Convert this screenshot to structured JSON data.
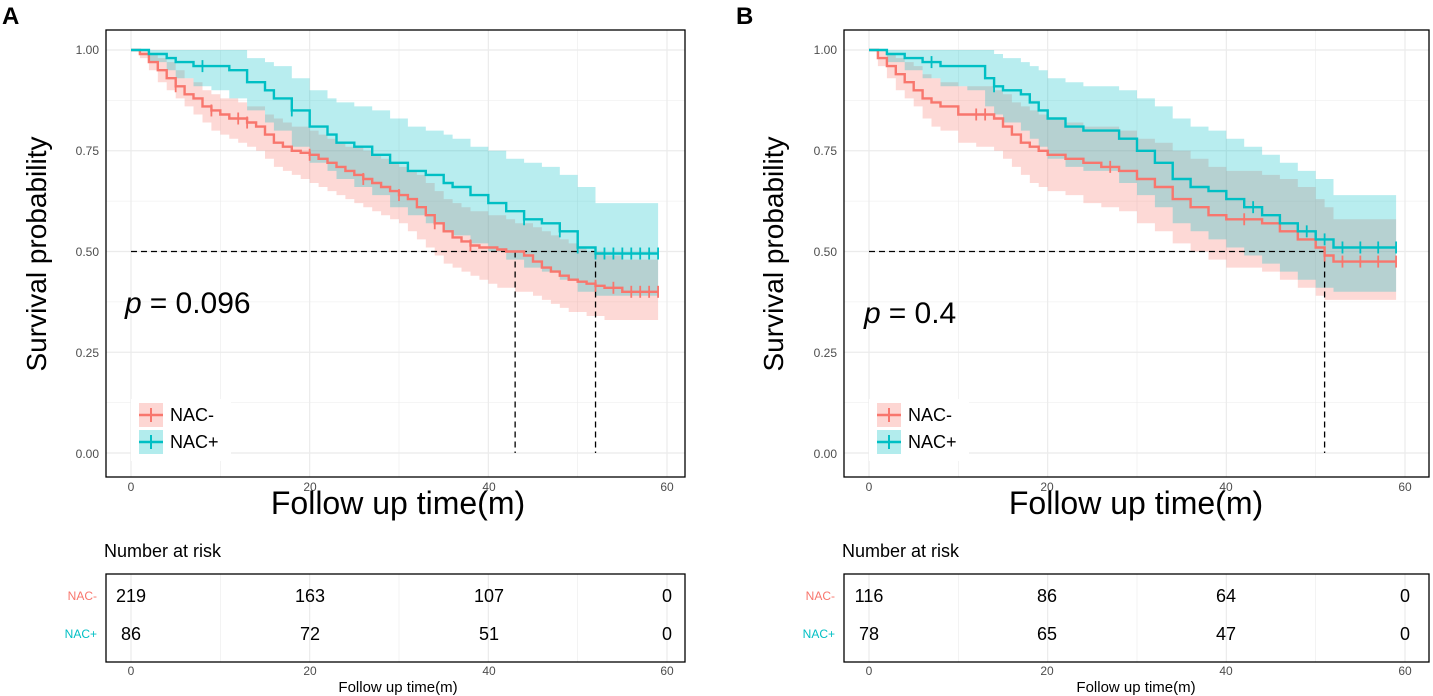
{
  "colors": {
    "nac_minus": "#F8766D",
    "nac_plus": "#00BFC4",
    "grid": "#EBEBEB",
    "axis_text": "#4D4D4D"
  },
  "panels": [
    {
      "panel_label": "A",
      "p_prefix": "p",
      "p_value": "= 0.096",
      "xlabel": "Follow up time(m)",
      "ylabel": "Survival probability",
      "xticks": [
        "0",
        "20",
        "40",
        "60"
      ],
      "yticks": [
        "0.00",
        "0.25",
        "0.50",
        "0.75",
        "1.00"
      ],
      "legend": [
        "NAC-",
        "NAC+"
      ],
      "risk_title": "Number at risk",
      "risk_xlabel": "Follow up time(m)",
      "risk_groups": [
        "NAC-",
        "NAC+"
      ],
      "risk_rows": [
        [
          "219",
          "163",
          "107",
          "0"
        ],
        [
          "86",
          "72",
          "51",
          "0"
        ]
      ]
    },
    {
      "panel_label": "B",
      "p_prefix": "p",
      "p_value": "= 0.4",
      "xlabel": "Follow up time(m)",
      "ylabel": "Survival probability",
      "xticks": [
        "0",
        "20",
        "40",
        "60"
      ],
      "yticks": [
        "0.00",
        "0.25",
        "0.50",
        "0.75",
        "1.00"
      ],
      "legend": [
        "NAC-",
        "NAC+"
      ],
      "risk_title": "Number at risk",
      "risk_xlabel": "Follow up time(m)",
      "risk_groups": [
        "NAC-",
        "NAC+"
      ],
      "risk_rows": [
        [
          "116",
          "86",
          "64",
          "0"
        ],
        [
          "78",
          "65",
          "47",
          "0"
        ]
      ]
    }
  ],
  "chart_data": [
    {
      "type": "line",
      "subtype": "kaplan-meier step curves with confidence bands",
      "panel": "A",
      "title": "",
      "xlabel": "Follow up time(m)",
      "ylabel": "Survival probability",
      "xlim": [
        0,
        60
      ],
      "ylim": [
        0,
        1
      ],
      "p_value": "0.096",
      "median_survival": {
        "NAC-": 43,
        "NAC+": 52
      },
      "series": [
        {
          "name": "NAC-",
          "time": [
            0,
            1,
            2,
            3,
            4,
            5,
            6,
            7,
            8,
            9,
            10,
            11,
            12,
            13,
            14,
            15,
            16,
            17,
            18,
            19,
            20,
            21,
            22,
            23,
            24,
            25,
            26,
            27,
            28,
            29,
            30,
            31,
            32,
            33,
            34,
            35,
            36,
            37,
            38,
            39,
            40,
            41,
            42,
            43,
            44,
            45,
            46,
            47,
            48,
            49,
            50,
            51,
            52,
            53,
            54,
            55,
            56,
            57,
            59
          ],
          "surv": [
            1.0,
            0.99,
            0.97,
            0.95,
            0.93,
            0.91,
            0.89,
            0.88,
            0.86,
            0.85,
            0.84,
            0.83,
            0.83,
            0.82,
            0.81,
            0.79,
            0.77,
            0.76,
            0.75,
            0.745,
            0.74,
            0.73,
            0.72,
            0.71,
            0.7,
            0.69,
            0.68,
            0.67,
            0.66,
            0.65,
            0.64,
            0.63,
            0.61,
            0.59,
            0.57,
            0.55,
            0.535,
            0.525,
            0.515,
            0.51,
            0.51,
            0.505,
            0.5,
            0.5,
            0.49,
            0.475,
            0.46,
            0.45,
            0.44,
            0.43,
            0.425,
            0.42,
            0.415,
            0.41,
            0.41,
            0.4,
            0.4,
            0.4,
            0.4
          ],
          "lower": [
            1.0,
            0.98,
            0.95,
            0.92,
            0.9,
            0.88,
            0.86,
            0.84,
            0.82,
            0.8,
            0.79,
            0.78,
            0.77,
            0.76,
            0.75,
            0.73,
            0.71,
            0.7,
            0.69,
            0.68,
            0.67,
            0.66,
            0.65,
            0.64,
            0.63,
            0.62,
            0.61,
            0.6,
            0.59,
            0.58,
            0.57,
            0.55,
            0.53,
            0.51,
            0.49,
            0.47,
            0.46,
            0.45,
            0.44,
            0.43,
            0.42,
            0.41,
            0.41,
            0.4,
            0.4,
            0.39,
            0.38,
            0.37,
            0.36,
            0.35,
            0.35,
            0.34,
            0.34,
            0.33,
            0.33,
            0.33,
            0.33,
            0.33,
            0.33
          ],
          "upper": [
            1.0,
            1.0,
            0.99,
            0.98,
            0.97,
            0.95,
            0.93,
            0.92,
            0.9,
            0.89,
            0.88,
            0.88,
            0.87,
            0.86,
            0.86,
            0.84,
            0.83,
            0.82,
            0.81,
            0.81,
            0.8,
            0.79,
            0.78,
            0.77,
            0.76,
            0.76,
            0.75,
            0.74,
            0.73,
            0.72,
            0.71,
            0.7,
            0.69,
            0.67,
            0.65,
            0.63,
            0.62,
            0.61,
            0.6,
            0.6,
            0.59,
            0.59,
            0.58,
            0.57,
            0.57,
            0.56,
            0.55,
            0.54,
            0.53,
            0.52,
            0.51,
            0.5,
            0.5,
            0.49,
            0.49,
            0.48,
            0.48,
            0.48,
            0.48
          ],
          "censor_times": [
            5,
            9,
            12,
            13,
            20,
            26,
            30,
            34,
            38,
            52,
            54,
            56,
            57,
            58,
            59
          ],
          "at_risk": {
            "0": 219,
            "20": 163,
            "40": 107,
            "60": 0
          }
        },
        {
          "name": "NAC+",
          "time": [
            0,
            2,
            4,
            5,
            7,
            9,
            11,
            13,
            15,
            16,
            18,
            20,
            22,
            23,
            25,
            27,
            29,
            31,
            33,
            35,
            36,
            38,
            40,
            42,
            44,
            46,
            48,
            50,
            52,
            53,
            54,
            55,
            56,
            57,
            58,
            59
          ],
          "surv": [
            1.0,
            0.99,
            0.98,
            0.97,
            0.96,
            0.96,
            0.95,
            0.92,
            0.9,
            0.88,
            0.85,
            0.81,
            0.79,
            0.77,
            0.76,
            0.74,
            0.72,
            0.7,
            0.69,
            0.67,
            0.66,
            0.64,
            0.62,
            0.6,
            0.58,
            0.57,
            0.55,
            0.51,
            0.495,
            0.495,
            0.495,
            0.495,
            0.495,
            0.495,
            0.495,
            0.495
          ],
          "lower": [
            1.0,
            0.97,
            0.95,
            0.93,
            0.91,
            0.9,
            0.88,
            0.85,
            0.82,
            0.8,
            0.76,
            0.72,
            0.7,
            0.68,
            0.66,
            0.64,
            0.61,
            0.59,
            0.57,
            0.55,
            0.54,
            0.52,
            0.5,
            0.48,
            0.46,
            0.45,
            0.43,
            0.4,
            0.39,
            0.39,
            0.39,
            0.39,
            0.39,
            0.39,
            0.39,
            0.39
          ],
          "upper": [
            1.0,
            1.0,
            1.0,
            1.0,
            1.0,
            1.0,
            1.0,
            0.98,
            0.97,
            0.96,
            0.93,
            0.9,
            0.88,
            0.87,
            0.86,
            0.85,
            0.83,
            0.81,
            0.8,
            0.79,
            0.78,
            0.76,
            0.75,
            0.73,
            0.72,
            0.71,
            0.69,
            0.66,
            0.62,
            0.62,
            0.62,
            0.62,
            0.62,
            0.62,
            0.62,
            0.62
          ],
          "censor_times": [
            8,
            18,
            44,
            48,
            50,
            52,
            53,
            54,
            55,
            56,
            57,
            58,
            59
          ],
          "at_risk": {
            "0": 86,
            "20": 72,
            "40": 51,
            "60": 0
          }
        }
      ]
    },
    {
      "type": "line",
      "subtype": "kaplan-meier step curves with confidence bands",
      "panel": "B",
      "title": "",
      "xlabel": "Follow up time(m)",
      "ylabel": "Survival probability",
      "xlim": [
        0,
        60
      ],
      "ylim": [
        0,
        1
      ],
      "p_value": "0.4",
      "median_survival": {
        "NAC-": 51
      },
      "series": [
        {
          "name": "NAC-",
          "time": [
            0,
            1,
            2,
            3,
            4,
            5,
            6,
            7,
            8,
            10,
            12,
            14,
            15,
            16,
            17,
            18,
            19,
            20,
            22,
            24,
            26,
            28,
            30,
            32,
            34,
            36,
            38,
            40,
            42,
            44,
            46,
            48,
            50,
            51,
            52,
            54,
            56,
            59
          ],
          "surv": [
            1.0,
            0.98,
            0.96,
            0.94,
            0.92,
            0.9,
            0.88,
            0.87,
            0.86,
            0.84,
            0.84,
            0.83,
            0.81,
            0.79,
            0.77,
            0.76,
            0.75,
            0.74,
            0.73,
            0.72,
            0.71,
            0.7,
            0.68,
            0.66,
            0.63,
            0.61,
            0.59,
            0.58,
            0.58,
            0.57,
            0.55,
            0.53,
            0.51,
            0.49,
            0.475,
            0.475,
            0.475,
            0.475
          ],
          "lower": [
            1.0,
            0.96,
            0.93,
            0.9,
            0.88,
            0.86,
            0.83,
            0.81,
            0.8,
            0.77,
            0.76,
            0.75,
            0.73,
            0.71,
            0.69,
            0.67,
            0.66,
            0.65,
            0.64,
            0.62,
            0.61,
            0.6,
            0.57,
            0.55,
            0.52,
            0.5,
            0.48,
            0.46,
            0.46,
            0.45,
            0.43,
            0.41,
            0.39,
            0.38,
            0.38,
            0.38,
            0.38,
            0.38
          ],
          "upper": [
            1.0,
            1.0,
            0.99,
            0.98,
            0.97,
            0.96,
            0.94,
            0.93,
            0.92,
            0.91,
            0.91,
            0.9,
            0.89,
            0.87,
            0.86,
            0.85,
            0.84,
            0.83,
            0.82,
            0.81,
            0.81,
            0.8,
            0.78,
            0.77,
            0.75,
            0.73,
            0.71,
            0.7,
            0.7,
            0.69,
            0.68,
            0.66,
            0.63,
            0.61,
            0.58,
            0.58,
            0.58,
            0.58
          ],
          "censor_times": [
            12,
            13,
            27,
            42,
            51,
            53,
            55,
            57,
            59
          ],
          "at_risk": {
            "0": 116,
            "20": 86,
            "40": 64,
            "60": 0
          }
        },
        {
          "name": "NAC+",
          "time": [
            0,
            2,
            4,
            6,
            8,
            11,
            13,
            14,
            15,
            17,
            18,
            19,
            20,
            22,
            24,
            26,
            28,
            30,
            32,
            34,
            36,
            38,
            40,
            42,
            44,
            46,
            48,
            50,
            52,
            54,
            56,
            59
          ],
          "surv": [
            1.0,
            0.99,
            0.98,
            0.97,
            0.96,
            0.96,
            0.93,
            0.91,
            0.9,
            0.89,
            0.87,
            0.85,
            0.83,
            0.81,
            0.8,
            0.8,
            0.78,
            0.75,
            0.72,
            0.68,
            0.66,
            0.65,
            0.63,
            0.61,
            0.59,
            0.57,
            0.55,
            0.53,
            0.51,
            0.51,
            0.51,
            0.51
          ],
          "lower": [
            1.0,
            0.97,
            0.95,
            0.93,
            0.91,
            0.9,
            0.86,
            0.84,
            0.82,
            0.8,
            0.78,
            0.76,
            0.73,
            0.71,
            0.7,
            0.7,
            0.67,
            0.64,
            0.61,
            0.57,
            0.55,
            0.53,
            0.51,
            0.49,
            0.47,
            0.45,
            0.43,
            0.41,
            0.4,
            0.4,
            0.4,
            0.4
          ],
          "upper": [
            1.0,
            1.0,
            1.0,
            1.0,
            1.0,
            1.0,
            1.0,
            0.99,
            0.98,
            0.97,
            0.96,
            0.95,
            0.93,
            0.92,
            0.91,
            0.91,
            0.9,
            0.88,
            0.86,
            0.83,
            0.81,
            0.8,
            0.78,
            0.76,
            0.74,
            0.72,
            0.7,
            0.68,
            0.64,
            0.64,
            0.64,
            0.64
          ],
          "censor_times": [
            7,
            14,
            43,
            49,
            51,
            53,
            55,
            57,
            59
          ],
          "at_risk": {
            "0": 78,
            "20": 65,
            "40": 47,
            "60": 0
          }
        }
      ]
    }
  ]
}
